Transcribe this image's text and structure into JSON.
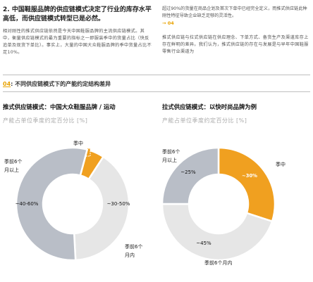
{
  "left_column": {
    "heading": "2. 中国鞋服品牌的供应链模式决定了行业的库存水平高低，而供应链模式转型已是必然。",
    "body": "相对刚性的推式供应链依然是今天中国鞋服品牌的主流供应链模式。其中，衡量供应链模式的最为重要的指标之一即服装季中的货量占比（快反追单及现货下单比）。事实上，大量的中国大众鞋服品牌的季中货量占比不足10%。"
  },
  "right_column": {
    "note": "超过90%的货量在商品企划及首次下单中已经完全定义，而推式供应链此种刚性特征导致企业缺乏足够的灵活性。",
    "ref": "→ 04",
    "body": "推式供应链与拉式供应链在供应理念、下单方式、备货生产及渠道库存上存在鲜明的差异。我们认为，推式供应链的存在与发展是与早年中国鞋服零售行业渠道为"
  },
  "section": {
    "number": "04",
    "title": ": 不同供应链模式下的产能约定结构差异"
  },
  "chart_subtitle": "产能占单位季度约定百分比 [%]",
  "chart_data": [
    {
      "type": "pie",
      "title": "推式供应链模式：中国大众鞋服品牌 / 运动",
      "slices": [
        {
          "label": "季中",
          "value_label": "~0-10%",
          "value": 5,
          "color": "#f0a020"
        },
        {
          "label": "季前6个月内",
          "value_label": "~30-50%",
          "value": 40,
          "color": "#e6e6e6"
        },
        {
          "label": "季前6个月以上",
          "value_label": "~40-60%",
          "value": 55,
          "color": "#b9bec7"
        }
      ]
    },
    {
      "type": "pie",
      "title": "拉式供应链模式：以快时尚品牌为例",
      "slices": [
        {
          "label": "季中",
          "value_label": "~30%",
          "value": 30,
          "color": "#f0a020"
        },
        {
          "label": "季前6个月内",
          "value_label": "~45%",
          "value": 45,
          "color": "#e6e6e6"
        },
        {
          "label": "季前6个月以上",
          "value_label": "~25%",
          "value": 25,
          "color": "#b9bec7"
        }
      ]
    }
  ]
}
